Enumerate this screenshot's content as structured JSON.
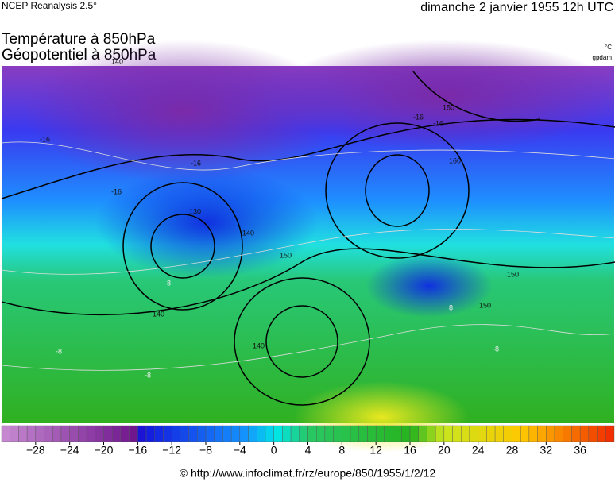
{
  "header": {
    "source": "NCEP Reanalysis 2.5°",
    "date": "dimanche 2 janvier 1955 12h UTC"
  },
  "titles": [
    "Température à 850hPa",
    "Géopotentiel à 850hPa"
  ],
  "units": [
    "°C",
    "gpdam"
  ],
  "contour_labels": [
    "-16",
    "-16",
    "-16",
    "-16",
    "-16",
    "130",
    "140",
    "140",
    "140",
    "150",
    "150",
    "150",
    "150",
    "160",
    "8",
    "8",
    "-8",
    "-8",
    "-8",
    "140"
  ],
  "colorbar": {
    "range": [
      -32,
      40
    ],
    "ticks": [
      {
        "value": -28,
        "label": "−28"
      },
      {
        "value": -24,
        "label": "−24"
      },
      {
        "value": -20,
        "label": "−20"
      },
      {
        "value": -16,
        "label": "−16"
      },
      {
        "value": -12,
        "label": "−12"
      },
      {
        "value": -8,
        "label": "−8"
      },
      {
        "value": -4,
        "label": "−4"
      },
      0,
      4,
      8,
      12,
      16,
      20,
      24,
      28,
      32,
      36
    ]
  },
  "footer": "© http://www.infoclimat.fr/rz/europe/850/1955/1/2/12"
}
